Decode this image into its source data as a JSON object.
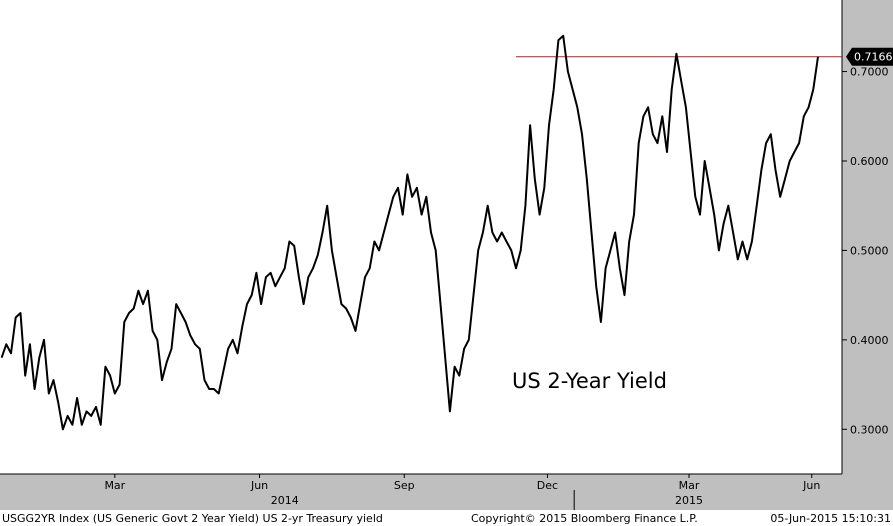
{
  "chart_data": {
    "type": "line",
    "title": "",
    "annotation": "US 2-Year Yield",
    "ylim": [
      0.25,
      0.78
    ],
    "yticks": [
      "0.3000",
      "0.4000",
      "0.5000",
      "0.6000",
      "0.7000"
    ],
    "yticks_values": [
      0.3,
      0.4,
      0.5,
      0.6,
      0.7
    ],
    "last_value": 0.7166,
    "last_value_label": "0.7166",
    "reference_line": 0.7166,
    "x_start": "2014-01-01",
    "x_end": "2015-06-05",
    "month_labels": [
      {
        "label": "Mar",
        "date": "2014-03-15"
      },
      {
        "label": "Jun",
        "date": "2014-06-15"
      },
      {
        "label": "Sep",
        "date": "2014-09-15"
      },
      {
        "label": "Dec",
        "date": "2014-12-15"
      },
      {
        "label": "Mar",
        "date": "2015-03-15"
      },
      {
        "label": "Jun",
        "date": "2015-06-01"
      }
    ],
    "year_labels": [
      {
        "label": "2014",
        "date": "2014-07-01"
      },
      {
        "label": "2015",
        "date": "2015-03-15"
      }
    ],
    "year_divider": "2015-01-01",
    "reference_line_start": "2014-11-25",
    "series": [
      {
        "points": [
          [
            "2014-01-02",
            0.38
          ],
          [
            "2014-01-05",
            0.395
          ],
          [
            "2014-01-08",
            0.385
          ],
          [
            "2014-01-11",
            0.425
          ],
          [
            "2014-01-14",
            0.43
          ],
          [
            "2014-01-17",
            0.36
          ],
          [
            "2014-01-20",
            0.395
          ],
          [
            "2014-01-23",
            0.345
          ],
          [
            "2014-01-26",
            0.38
          ],
          [
            "2014-01-29",
            0.4
          ],
          [
            "2014-02-01",
            0.34
          ],
          [
            "2014-02-04",
            0.355
          ],
          [
            "2014-02-07",
            0.33
          ],
          [
            "2014-02-10",
            0.3
          ],
          [
            "2014-02-13",
            0.315
          ],
          [
            "2014-02-16",
            0.305
          ],
          [
            "2014-02-19",
            0.335
          ],
          [
            "2014-02-22",
            0.305
          ],
          [
            "2014-02-25",
            0.32
          ],
          [
            "2014-02-28",
            0.315
          ],
          [
            "2014-03-03",
            0.325
          ],
          [
            "2014-03-06",
            0.305
          ],
          [
            "2014-03-09",
            0.37
          ],
          [
            "2014-03-12",
            0.36
          ],
          [
            "2014-03-15",
            0.34
          ],
          [
            "2014-03-18",
            0.35
          ],
          [
            "2014-03-21",
            0.42
          ],
          [
            "2014-03-24",
            0.43
          ],
          [
            "2014-03-27",
            0.435
          ],
          [
            "2014-03-30",
            0.455
          ],
          [
            "2014-04-02",
            0.44
          ],
          [
            "2014-04-05",
            0.455
          ],
          [
            "2014-04-08",
            0.41
          ],
          [
            "2014-04-11",
            0.4
          ],
          [
            "2014-04-14",
            0.355
          ],
          [
            "2014-04-17",
            0.375
          ],
          [
            "2014-04-20",
            0.39
          ],
          [
            "2014-04-23",
            0.44
          ],
          [
            "2014-04-26",
            0.43
          ],
          [
            "2014-04-29",
            0.42
          ],
          [
            "2014-05-02",
            0.405
          ],
          [
            "2014-05-05",
            0.395
          ],
          [
            "2014-05-08",
            0.39
          ],
          [
            "2014-05-11",
            0.355
          ],
          [
            "2014-05-14",
            0.345
          ],
          [
            "2014-05-17",
            0.345
          ],
          [
            "2014-05-20",
            0.34
          ],
          [
            "2014-05-23",
            0.365
          ],
          [
            "2014-05-26",
            0.39
          ],
          [
            "2014-05-29",
            0.4
          ],
          [
            "2014-06-01",
            0.385
          ],
          [
            "2014-06-04",
            0.415
          ],
          [
            "2014-06-07",
            0.44
          ],
          [
            "2014-06-10",
            0.45
          ],
          [
            "2014-06-13",
            0.475
          ],
          [
            "2014-06-16",
            0.44
          ],
          [
            "2014-06-19",
            0.47
          ],
          [
            "2014-06-22",
            0.475
          ],
          [
            "2014-06-25",
            0.46
          ],
          [
            "2014-06-28",
            0.47
          ],
          [
            "2014-07-01",
            0.48
          ],
          [
            "2014-07-04",
            0.51
          ],
          [
            "2014-07-07",
            0.505
          ],
          [
            "2014-07-10",
            0.47
          ],
          [
            "2014-07-13",
            0.44
          ],
          [
            "2014-07-16",
            0.47
          ],
          [
            "2014-07-19",
            0.48
          ],
          [
            "2014-07-22",
            0.495
          ],
          [
            "2014-07-25",
            0.52
          ],
          [
            "2014-07-28",
            0.55
          ],
          [
            "2014-07-31",
            0.5
          ],
          [
            "2014-08-03",
            0.47
          ],
          [
            "2014-08-06",
            0.44
          ],
          [
            "2014-08-09",
            0.435
          ],
          [
            "2014-08-12",
            0.425
          ],
          [
            "2014-08-15",
            0.41
          ],
          [
            "2014-08-18",
            0.44
          ],
          [
            "2014-08-21",
            0.47
          ],
          [
            "2014-08-24",
            0.48
          ],
          [
            "2014-08-27",
            0.51
          ],
          [
            "2014-08-30",
            0.5
          ],
          [
            "2014-09-02",
            0.52
          ],
          [
            "2014-09-05",
            0.54
          ],
          [
            "2014-09-08",
            0.56
          ],
          [
            "2014-09-11",
            0.57
          ],
          [
            "2014-09-14",
            0.54
          ],
          [
            "2014-09-17",
            0.585
          ],
          [
            "2014-09-20",
            0.56
          ],
          [
            "2014-09-23",
            0.57
          ],
          [
            "2014-09-26",
            0.54
          ],
          [
            "2014-09-29",
            0.56
          ],
          [
            "2014-10-02",
            0.52
          ],
          [
            "2014-10-05",
            0.5
          ],
          [
            "2014-10-08",
            0.44
          ],
          [
            "2014-10-11",
            0.38
          ],
          [
            "2014-10-14",
            0.32
          ],
          [
            "2014-10-17",
            0.37
          ],
          [
            "2014-10-20",
            0.36
          ],
          [
            "2014-10-23",
            0.39
          ],
          [
            "2014-10-26",
            0.4
          ],
          [
            "2014-10-29",
            0.45
          ],
          [
            "2014-11-01",
            0.5
          ],
          [
            "2014-11-04",
            0.52
          ],
          [
            "2014-11-07",
            0.55
          ],
          [
            "2014-11-10",
            0.52
          ],
          [
            "2014-11-13",
            0.51
          ],
          [
            "2014-11-16",
            0.52
          ],
          [
            "2014-11-19",
            0.51
          ],
          [
            "2014-11-22",
            0.5
          ],
          [
            "2014-11-25",
            0.48
          ],
          [
            "2014-11-28",
            0.5
          ],
          [
            "2014-12-01",
            0.55
          ],
          [
            "2014-12-04",
            0.64
          ],
          [
            "2014-12-07",
            0.58
          ],
          [
            "2014-12-10",
            0.54
          ],
          [
            "2014-12-13",
            0.57
          ],
          [
            "2014-12-16",
            0.64
          ],
          [
            "2014-12-19",
            0.68
          ],
          [
            "2014-12-22",
            0.735
          ],
          [
            "2014-12-25",
            0.74
          ],
          [
            "2014-12-28",
            0.7
          ],
          [
            "2014-12-31",
            0.68
          ],
          [
            "2015-01-03",
            0.66
          ],
          [
            "2015-01-06",
            0.63
          ],
          [
            "2015-01-09",
            0.58
          ],
          [
            "2015-01-12",
            0.52
          ],
          [
            "2015-01-15",
            0.46
          ],
          [
            "2015-01-18",
            0.42
          ],
          [
            "2015-01-21",
            0.48
          ],
          [
            "2015-01-24",
            0.5
          ],
          [
            "2015-01-27",
            0.52
          ],
          [
            "2015-01-30",
            0.48
          ],
          [
            "2015-02-02",
            0.45
          ],
          [
            "2015-02-05",
            0.51
          ],
          [
            "2015-02-08",
            0.54
          ],
          [
            "2015-02-11",
            0.62
          ],
          [
            "2015-02-14",
            0.65
          ],
          [
            "2015-02-17",
            0.66
          ],
          [
            "2015-02-20",
            0.63
          ],
          [
            "2015-02-23",
            0.62
          ],
          [
            "2015-02-26",
            0.65
          ],
          [
            "2015-03-01",
            0.61
          ],
          [
            "2015-03-04",
            0.68
          ],
          [
            "2015-03-07",
            0.72
          ],
          [
            "2015-03-10",
            0.69
          ],
          [
            "2015-03-13",
            0.66
          ],
          [
            "2015-03-16",
            0.61
          ],
          [
            "2015-03-19",
            0.56
          ],
          [
            "2015-03-22",
            0.54
          ],
          [
            "2015-03-25",
            0.6
          ],
          [
            "2015-03-28",
            0.57
          ],
          [
            "2015-03-31",
            0.54
          ],
          [
            "2015-04-03",
            0.5
          ],
          [
            "2015-04-06",
            0.53
          ],
          [
            "2015-04-09",
            0.55
          ],
          [
            "2015-04-12",
            0.52
          ],
          [
            "2015-04-15",
            0.49
          ],
          [
            "2015-04-18",
            0.51
          ],
          [
            "2015-04-21",
            0.49
          ],
          [
            "2015-04-24",
            0.51
          ],
          [
            "2015-04-27",
            0.55
          ],
          [
            "2015-04-30",
            0.59
          ],
          [
            "2015-05-03",
            0.62
          ],
          [
            "2015-05-06",
            0.63
          ],
          [
            "2015-05-09",
            0.59
          ],
          [
            "2015-05-12",
            0.56
          ],
          [
            "2015-05-15",
            0.58
          ],
          [
            "2015-05-18",
            0.6
          ],
          [
            "2015-05-21",
            0.61
          ],
          [
            "2015-05-24",
            0.62
          ],
          [
            "2015-05-27",
            0.65
          ],
          [
            "2015-05-30",
            0.66
          ],
          [
            "2015-06-02",
            0.68
          ],
          [
            "2015-06-05",
            0.7166
          ]
        ]
      }
    ]
  },
  "footer": {
    "left": "USGG2YR Index (US Generic Govt 2 Year Yield) US 2-yr Treasury yield",
    "right": "Copyright© 2015 Bloomberg Finance L.P.",
    "timestamp": "05-Jun-2015 15:10:31"
  },
  "colors": {
    "line": "#000000",
    "reference": "#b22222",
    "last_label_bg": "#000000",
    "axis_panel": "#bfbfbf"
  }
}
